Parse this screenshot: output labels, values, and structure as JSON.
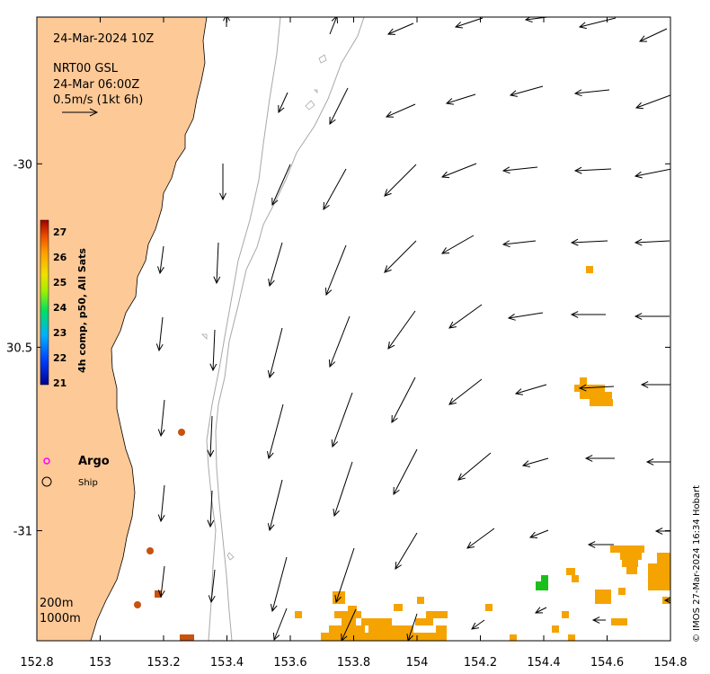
{
  "title": {
    "datetime": "24-Mar-2024 10Z",
    "product": "NRT00 GSL",
    "product_time": "24-Mar 06:00Z",
    "scale_label": "0.5m/s (1kt 6h)"
  },
  "axes": {
    "x_ticks": [
      {
        "value": 152.8,
        "label": "152.8"
      },
      {
        "value": 153.0,
        "label": "153"
      },
      {
        "value": 153.2,
        "label": "153.2"
      },
      {
        "value": 153.4,
        "label": "153.4"
      },
      {
        "value": 153.6,
        "label": "153.6"
      },
      {
        "value": 153.8,
        "label": "153.8"
      },
      {
        "value": 154.0,
        "label": "154"
      },
      {
        "value": 154.2,
        "label": "154.2"
      },
      {
        "value": 154.4,
        "label": "154.4"
      },
      {
        "value": 154.6,
        "label": "154.6"
      },
      {
        "value": 154.8,
        "label": "154.8"
      }
    ],
    "y_ticks": [
      {
        "value": -30.0,
        "label": "-30"
      },
      {
        "value": -30.5,
        "label": "30.5"
      },
      {
        "value": -31.0,
        "label": "-31"
      }
    ],
    "x_range": [
      152.8,
      154.8
    ],
    "y_range": [
      -31.3,
      -29.6
    ]
  },
  "colorbar": {
    "label": "4h comp, p50, All Sats",
    "min": 21,
    "max": 27,
    "tick_labels": [
      "27",
      "26",
      "25",
      "24",
      "23",
      "22",
      "21"
    ],
    "colors": [
      "#000090",
      "#0040ff",
      "#00b0ff",
      "#00e060",
      "#a0f000",
      "#f0e000",
      "#ffa000",
      "#f05000",
      "#a00000"
    ]
  },
  "legend": {
    "argo_label": "Argo",
    "ship_label": "Ship",
    "argo_color": "#ff00ff"
  },
  "depth_labels": {
    "contour_200": "200m",
    "contour_1000": "1000m"
  },
  "credit": "© IMOS 27-Mar-2024 16:34 Hobart",
  "colors": {
    "land": "#fdc997",
    "contour": "#a8a8a8",
    "sst_warm": "#f5a300",
    "sst_green": "#1bbf1b",
    "argo_fill": "#c8520f"
  },
  "chart_data": {
    "type": "map",
    "sst_patches": [
      {
        "lon": 154.55,
        "lat": -30.28
      },
      {
        "lon": 154.57,
        "lat": -30.62
      },
      {
        "lon": 154.73,
        "lat": -31.1
      },
      {
        "lon": 154.56,
        "lat": -31.18
      },
      {
        "lon": 153.85,
        "lat": -31.23
      },
      {
        "lon": 154.4,
        "lat": -31.14
      }
    ],
    "argo_floats": [
      {
        "lon": 153.26,
        "lat": -30.73
      },
      {
        "lon": 153.16,
        "lat": -31.05
      },
      {
        "lon": 153.18,
        "lat": -31.17
      },
      {
        "lon": 153.12,
        "lat": -31.2
      },
      {
        "lon": 153.27,
        "lat": -31.29
      }
    ]
  }
}
